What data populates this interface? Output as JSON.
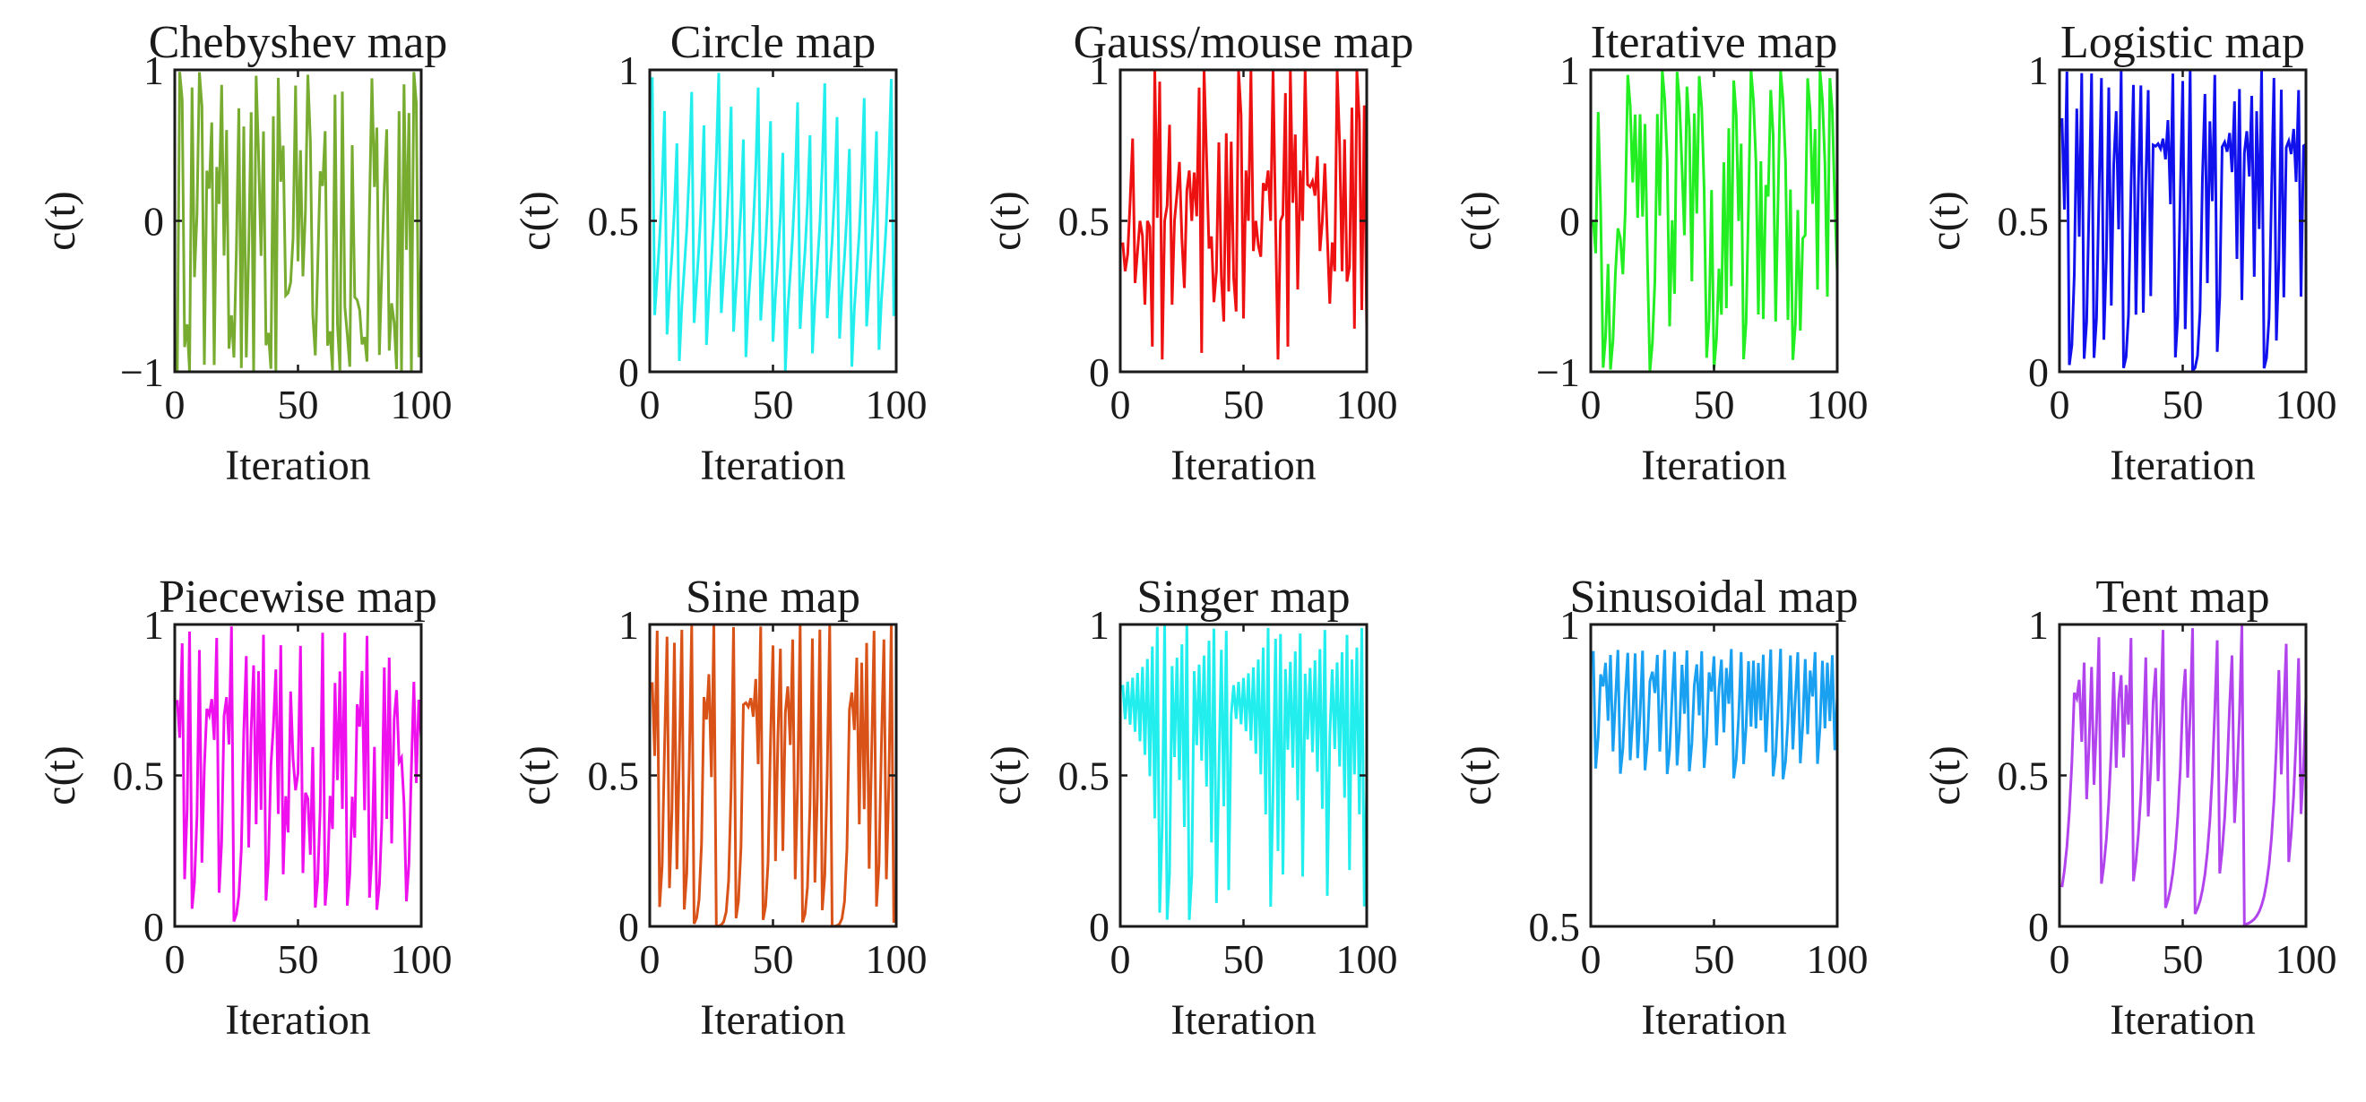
{
  "figure": {
    "description_free": true
  },
  "chart_data": [
    {
      "type": "line",
      "title": "Chebyshev map",
      "xlabel": "Iteration",
      "ylabel": "c(t)",
      "xlim": [
        0,
        100
      ],
      "ylim": [
        -1,
        1
      ],
      "xticks": [
        0,
        50,
        100
      ],
      "xtick_labels": [
        "0",
        "50",
        "100"
      ],
      "yticks": [
        -1,
        0,
        1
      ],
      "ytick_labels": [
        "−1",
        "0",
        "1"
      ],
      "color": "#77ac30",
      "generator": "chebyshev",
      "seed": 0.7,
      "series": [
        {
          "name": "Chebyshev map",
          "x_start": 1,
          "x_end": 100,
          "n_points": 100
        }
      ]
    },
    {
      "type": "line",
      "title": "Circle map",
      "xlabel": "Iteration",
      "ylabel": "c(t)",
      "xlim": [
        0,
        100
      ],
      "ylim": [
        0,
        1
      ],
      "xticks": [
        0,
        50,
        100
      ],
      "xtick_labels": [
        "0",
        "50",
        "100"
      ],
      "yticks": [
        0,
        0.5,
        1
      ],
      "ytick_labels": [
        "0",
        "0.5",
        "1"
      ],
      "color": "#22eeee",
      "generator": "circle",
      "seed": 0.7,
      "series": [
        {
          "name": "Circle map",
          "x_start": 1,
          "x_end": 100,
          "n_points": 100
        }
      ]
    },
    {
      "type": "line",
      "title": "Gauss/mouse map",
      "xlabel": "Iteration",
      "ylabel": "c(t)",
      "xlim": [
        0,
        100
      ],
      "ylim": [
        0,
        1
      ],
      "xticks": [
        0,
        50,
        100
      ],
      "xtick_labels": [
        "0",
        "50",
        "100"
      ],
      "yticks": [
        0,
        0.5,
        1
      ],
      "ytick_labels": [
        "0",
        "0.5",
        "1"
      ],
      "color": "#ee1111",
      "generator": "gauss",
      "seed": 0.7,
      "series": [
        {
          "name": "Gauss/mouse map",
          "x_start": 1,
          "x_end": 100,
          "n_points": 100
        }
      ]
    },
    {
      "type": "line",
      "title": "Iterative map",
      "xlabel": "Iteration",
      "ylabel": "c(t)",
      "xlim": [
        0,
        100
      ],
      "ylim": [
        -1,
        1
      ],
      "xticks": [
        0,
        50,
        100
      ],
      "xtick_labels": [
        "0",
        "50",
        "100"
      ],
      "yticks": [
        -1,
        0,
        1
      ],
      "ytick_labels": [
        "−1",
        "0",
        "1"
      ],
      "color": "#22ee22",
      "generator": "iterative",
      "seed": 0.7,
      "series": [
        {
          "name": "Iterative map",
          "x_start": 1,
          "x_end": 100,
          "n_points": 100
        }
      ]
    },
    {
      "type": "line",
      "title": "Logistic map",
      "xlabel": "Iteration",
      "ylabel": "c(t)",
      "xlim": [
        0,
        100
      ],
      "ylim": [
        0,
        1
      ],
      "xticks": [
        0,
        50,
        100
      ],
      "xtick_labels": [
        "0",
        "50",
        "100"
      ],
      "yticks": [
        0,
        0.5,
        1
      ],
      "ytick_labels": [
        "0",
        "0.5",
        "1"
      ],
      "color": "#1111ee",
      "generator": "logistic",
      "seed": 0.7,
      "series": [
        {
          "name": "Logistic map",
          "x_start": 1,
          "x_end": 100,
          "n_points": 100
        }
      ]
    },
    {
      "type": "line",
      "title": "Piecewise map",
      "xlabel": "Iteration",
      "ylabel": "c(t)",
      "xlim": [
        0,
        100
      ],
      "ylim": [
        0,
        1
      ],
      "xticks": [
        0,
        50,
        100
      ],
      "xtick_labels": [
        "0",
        "50",
        "100"
      ],
      "yticks": [
        0,
        0.5,
        1
      ],
      "ytick_labels": [
        "0",
        "0.5",
        "1"
      ],
      "color": "#ee11ee",
      "generator": "piecewise",
      "seed": 0.7,
      "series": [
        {
          "name": "Piecewise map",
          "x_start": 1,
          "x_end": 100,
          "n_points": 100
        }
      ]
    },
    {
      "type": "line",
      "title": "Sine map",
      "xlabel": "Iteration",
      "ylabel": "c(t)",
      "xlim": [
        0,
        100
      ],
      "ylim": [
        0,
        1
      ],
      "xticks": [
        0,
        50,
        100
      ],
      "xtick_labels": [
        "0",
        "50",
        "100"
      ],
      "yticks": [
        0,
        0.5,
        1
      ],
      "ytick_labels": [
        "0",
        "0.5",
        "1"
      ],
      "color": "#d95319",
      "generator": "sine",
      "seed": 0.7,
      "series": [
        {
          "name": "Sine map",
          "x_start": 1,
          "x_end": 100,
          "n_points": 100
        }
      ]
    },
    {
      "type": "line",
      "title": "Singer map",
      "xlabel": "Iteration",
      "ylabel": "c(t)",
      "xlim": [
        0,
        100
      ],
      "ylim": [
        0,
        1
      ],
      "xticks": [
        0,
        50,
        100
      ],
      "xtick_labels": [
        "0",
        "50",
        "100"
      ],
      "yticks": [
        0,
        0.5,
        1
      ],
      "ytick_labels": [
        "0",
        "0.5",
        "1"
      ],
      "color": "#22eeee",
      "generator": "singer",
      "seed": 0.7,
      "series": [
        {
          "name": "Singer map",
          "x_start": 1,
          "x_end": 100,
          "n_points": 100
        }
      ]
    },
    {
      "type": "line",
      "title": "Sinusoidal map",
      "xlabel": "Iteration",
      "ylabel": "c(t)",
      "xlim": [
        0,
        100
      ],
      "ylim": [
        0.5,
        1
      ],
      "xticks": [
        0,
        50,
        100
      ],
      "xtick_labels": [
        "0",
        "50",
        "100"
      ],
      "yticks": [
        0.5,
        1
      ],
      "ytick_labels": [
        "0.5",
        "1"
      ],
      "color": "#1aa0f0",
      "generator": "sinusoidal",
      "seed": 0.7,
      "series": [
        {
          "name": "Sinusoidal map",
          "x_start": 1,
          "x_end": 100,
          "n_points": 100
        }
      ]
    },
    {
      "type": "line",
      "title": "Tent map",
      "xlabel": "Iteration",
      "ylabel": "c(t)",
      "xlim": [
        0,
        100
      ],
      "ylim": [
        0,
        1
      ],
      "xticks": [
        0,
        50,
        100
      ],
      "xtick_labels": [
        "0",
        "50",
        "100"
      ],
      "yticks": [
        0,
        0.5,
        1
      ],
      "ytick_labels": [
        "0",
        "0.5",
        "1"
      ],
      "color": "#b244ee",
      "generator": "tent",
      "seed": 0.7,
      "series": [
        {
          "name": "Tent map",
          "x_start": 1,
          "x_end": 100,
          "n_points": 100
        }
      ]
    }
  ]
}
